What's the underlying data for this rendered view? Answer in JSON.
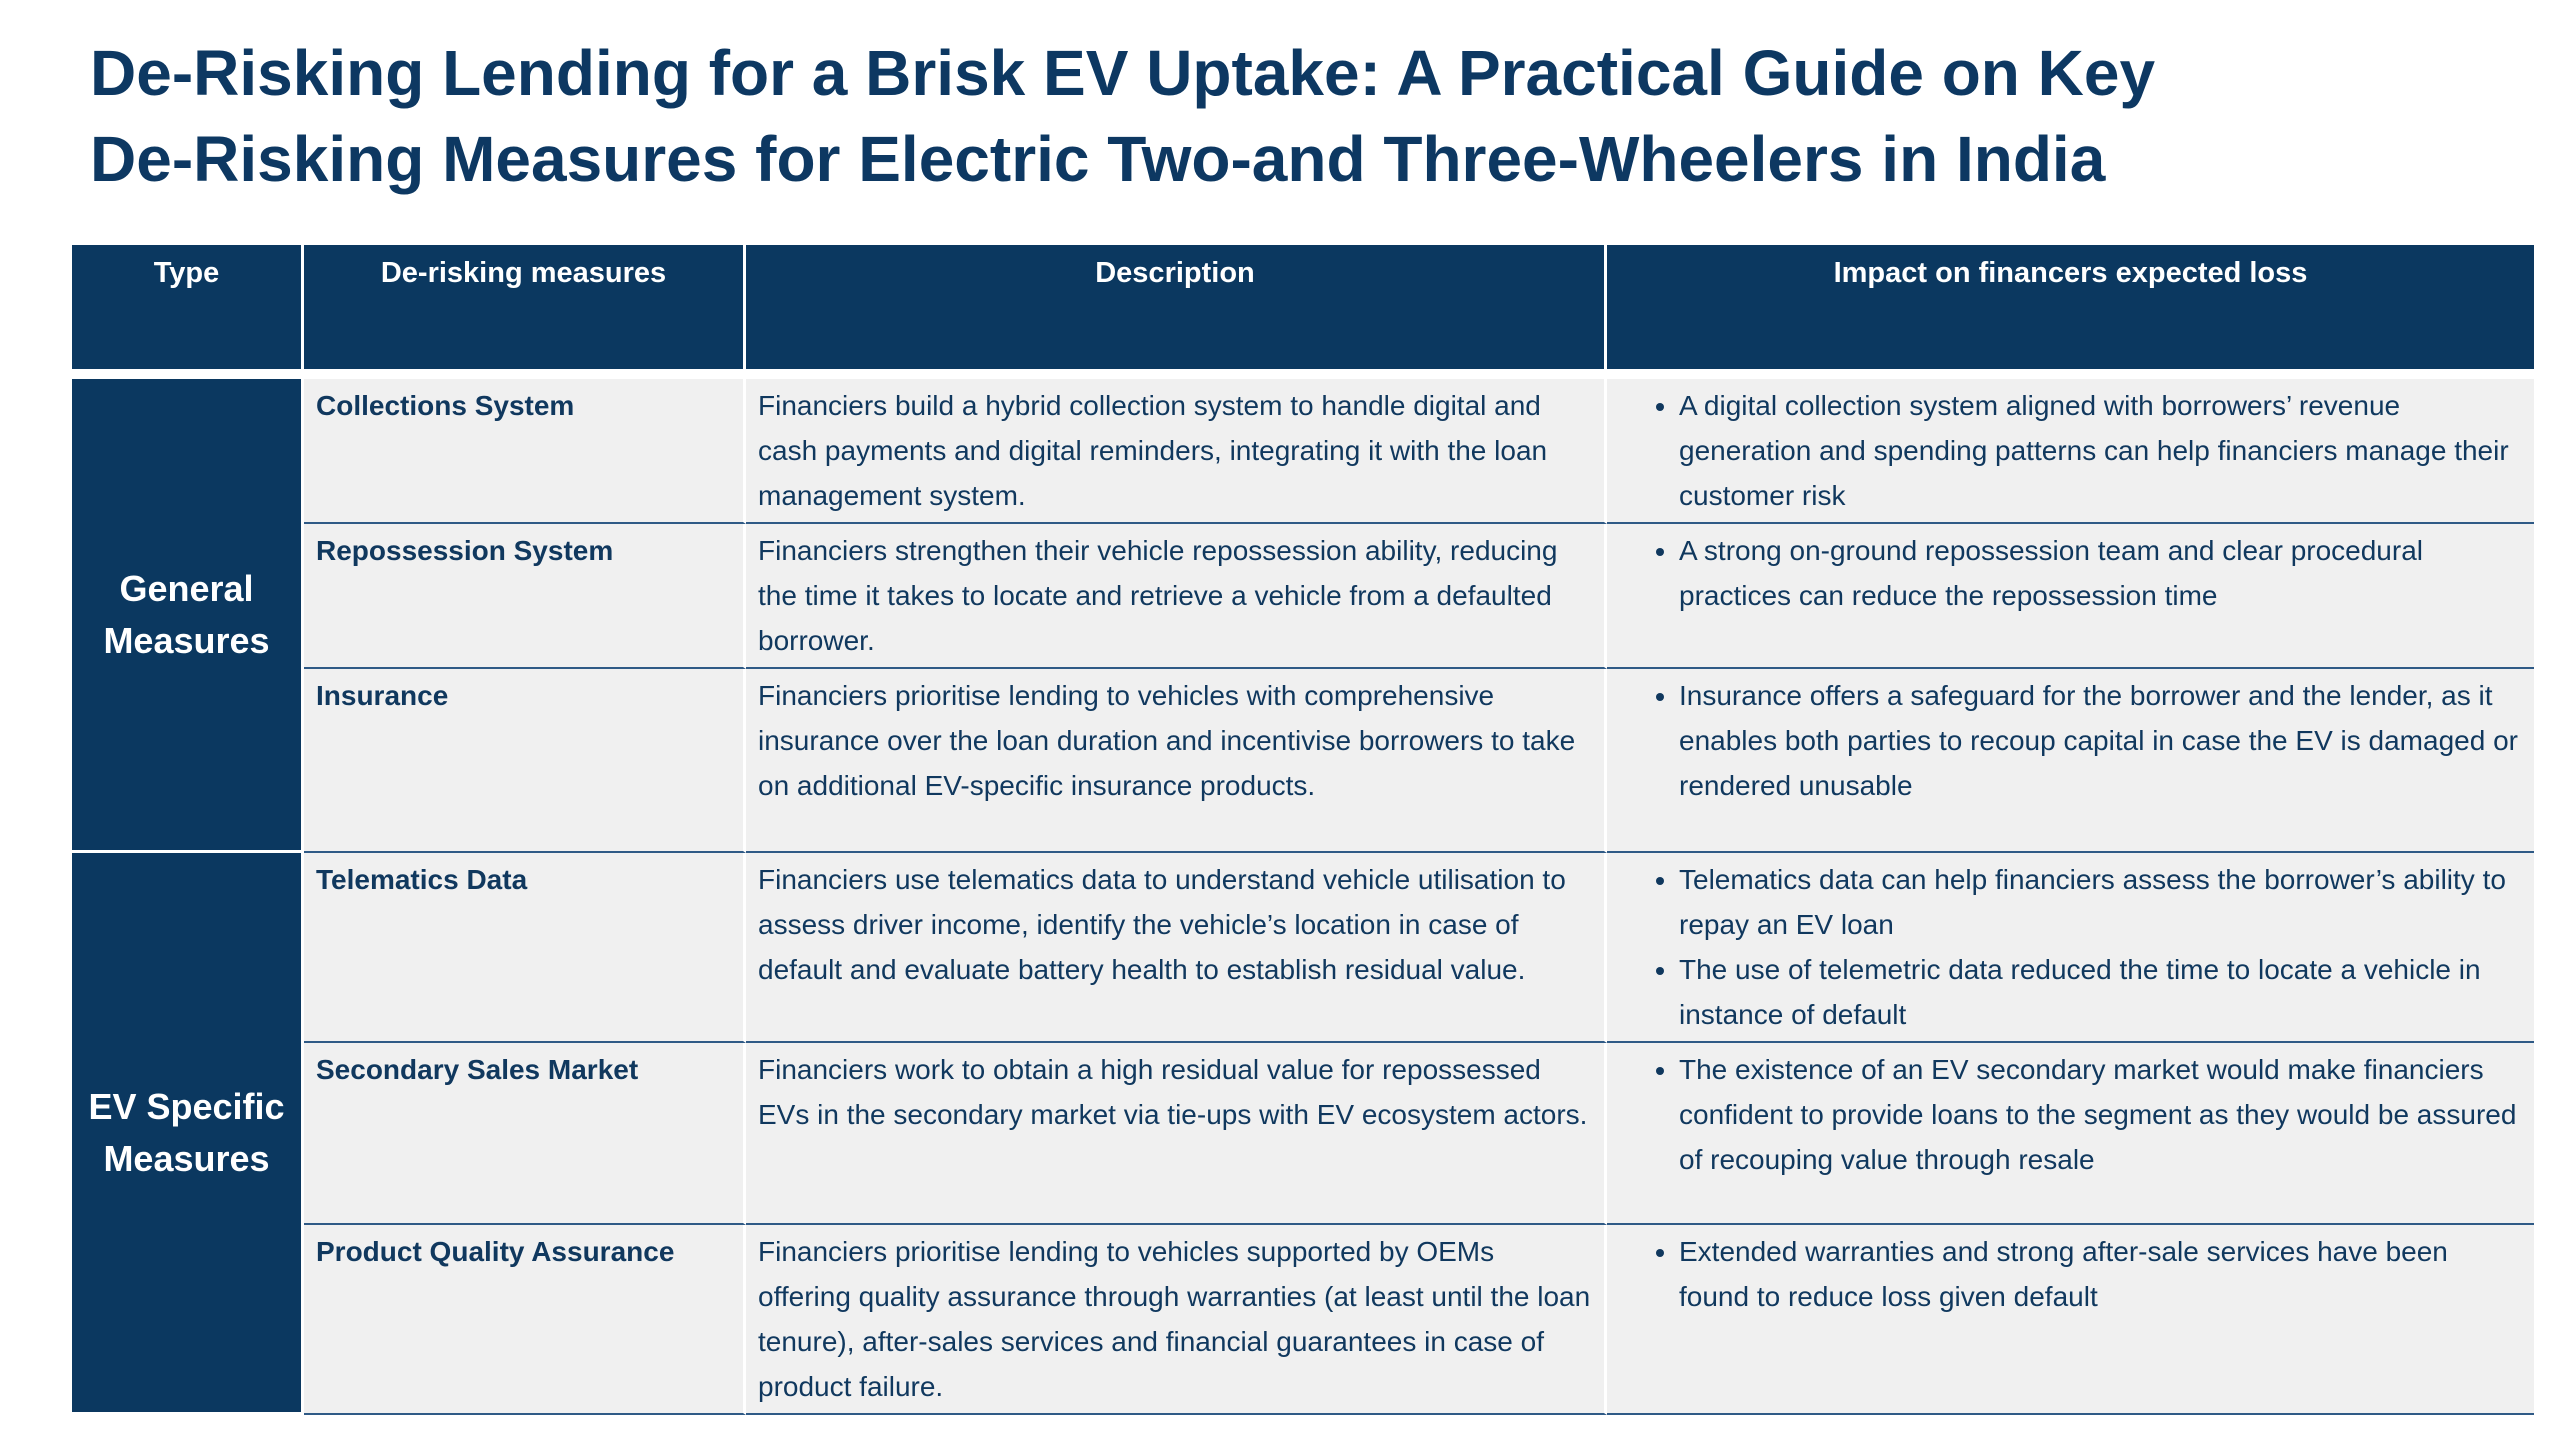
{
  "header": {
    "title_lines": [
      "De-Risking Lending for a Brisk EV Uptake: A Practical Guide on Key",
      "De-Risking Measures for Electric Two-and Three-Wheelers in India"
    ]
  },
  "table": {
    "columns": [
      "Type",
      "De-risking measures",
      "Description",
      "Impact on financers expected loss"
    ],
    "groups": [
      {
        "type": "General Measures",
        "rows": [
          {
            "measure": "Collections System",
            "description": "Financiers build a hybrid collection system to handle digital and cash payments and digital reminders, integrating it with the loan management system.",
            "impact": [
              "A digital collection system aligned with borrowers’ revenue generation and spending patterns can help financiers manage their customer risk"
            ]
          },
          {
            "measure": "Repossession System",
            "description": "Financiers strengthen their vehicle repossession ability, reducing the time it takes to locate and retrieve a vehicle from a defaulted borrower.",
            "impact": [
              "A strong on-ground repossession team and clear procedural practices can reduce the repossession time"
            ]
          },
          {
            "measure": "Insurance",
            "description": "Financiers prioritise lending to vehicles with comprehensive insurance over the loan duration and incentivise borrowers to take on additional EV-specific insurance products.",
            "impact": [
              "Insurance offers a safeguard for the borrower and the lender, as it enables both parties to recoup capital in case the EV is damaged or rendered unusable"
            ]
          }
        ]
      },
      {
        "type": "EV Specific Measures",
        "rows": [
          {
            "measure": "Telematics Data",
            "description": "Financiers use telematics data to understand vehicle utilisation to assess driver income, identify the vehicle’s location in case of default and evaluate battery health to establish residual value.",
            "impact": [
              "Telematics data can help financiers assess the borrower’s ability to repay an EV loan",
              "The use of telemetric data reduced the time to locate a vehicle in instance of default"
            ]
          },
          {
            "measure": "Secondary Sales Market",
            "description": "Financiers work to obtain a high residual value for repossessed EVs in the secondary market via tie-ups with EV ecosystem actors.",
            "impact": [
              "The existence of an EV secondary market would make financiers confident to provide loans to the segment as they would be assured of recouping value through resale"
            ]
          },
          {
            "measure": "Product Quality Assurance",
            "description": "Financiers prioritise lending to vehicles supported by OEMs offering quality assurance through warranties (at least until the loan tenure), after-sales services and financial guarantees in case of product failure.",
            "impact": [
              "Extended warranties and strong after-sale services have been found to reduce loss given default"
            ]
          }
        ]
      }
    ]
  }
}
